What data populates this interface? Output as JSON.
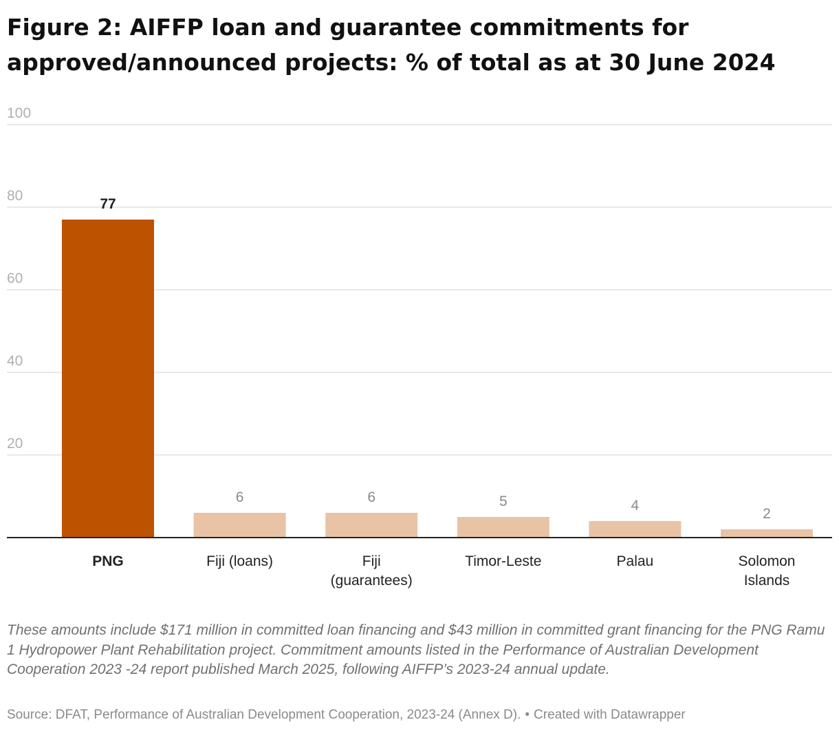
{
  "title": "Figure 2: AIFFP loan and guarantee commitments for approved/announced projects: % of total as at 30 June 2024",
  "chart_data": {
    "type": "bar",
    "categories": [
      "PNG",
      "Fiji (loans)",
      "Fiji (guarantees)",
      "Timor-Leste",
      "Palau",
      "Solomon Islands"
    ],
    "category_lines": [
      [
        "PNG"
      ],
      [
        "Fiji (loans)"
      ],
      [
        "Fiji",
        "(guarantees)"
      ],
      [
        "Timor-Leste"
      ],
      [
        "Palau"
      ],
      [
        "Solomon",
        "Islands"
      ]
    ],
    "values": [
      77,
      6,
      6,
      5,
      4,
      2
    ],
    "highlight_index": 0,
    "ylim": [
      0,
      100
    ],
    "yticks": [
      20,
      40,
      60,
      80,
      100
    ],
    "xlabel": "",
    "ylabel": "",
    "grid": true,
    "colors": {
      "highlight": "#bd5200",
      "default": "#e9c3a6",
      "grid": "#e0e0e0",
      "axis": "#222222",
      "tick_label": "#b0b0b0",
      "highlight_label": "#222222",
      "default_label": "#8a8a8a"
    }
  },
  "footer": {
    "notes": "These amounts include $171 million in committed loan financing and $43 million in committed grant financing for the PNG Ramu 1 Hydropower Plant Rehabilitation project. Commitment amounts listed in the Performance of Australian Development Cooperation 2023 -24 report published March 2025, following AIFFP’s 2023-24 annual update.",
    "source": "Source: DFAT, Performance of Australian Development Cooperation, 2023-24 (Annex D).",
    "separator": "•",
    "credit": "Created with Datawrapper"
  }
}
